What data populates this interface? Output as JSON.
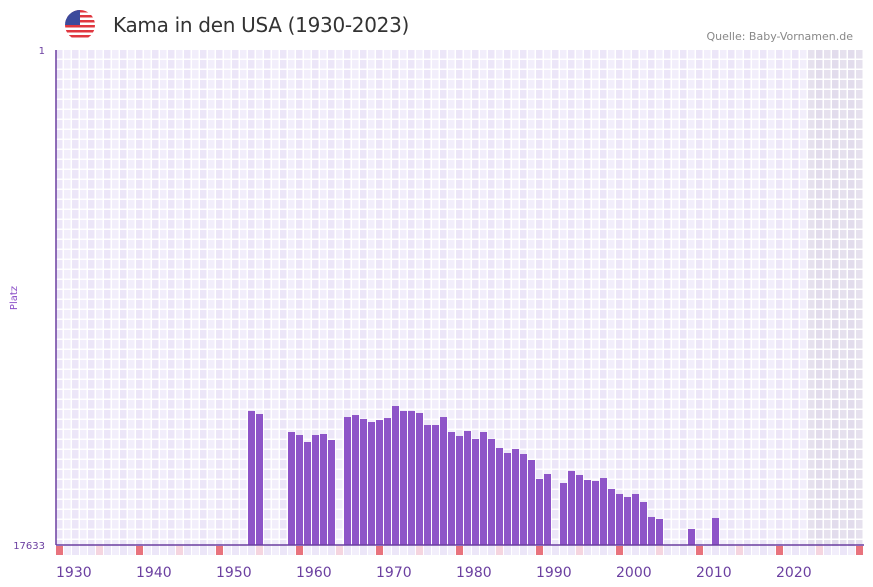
{
  "header": {
    "title": "Kama in den USA (1930-2023)",
    "source": "Quelle: Baby-Vornamen.de",
    "flag_icon": "us-flag-icon"
  },
  "chart_data": {
    "type": "bar",
    "title": "Kama in den USA (1930-2023)",
    "xlabel": "",
    "ylabel": "Platz",
    "y_axis_inverted": true,
    "ylim": [
      1,
      17633
    ],
    "y_ticks": [
      "1",
      "17633"
    ],
    "xlim": [
      1930,
      2030
    ],
    "x_ticks": [
      "1930",
      "1940",
      "1950",
      "1960",
      "1970",
      "1980",
      "1990",
      "2000",
      "2010",
      "2020"
    ],
    "shaded_future_from": 2024,
    "colors": {
      "bar": "#8e55c8",
      "axis": "#6b3fa0",
      "marker_decade": "#e8737d",
      "marker_half": "#f5d5df"
    },
    "x": [
      1954,
      1955,
      1959,
      1960,
      1961,
      1962,
      1963,
      1964,
      1966,
      1967,
      1968,
      1969,
      1970,
      1971,
      1972,
      1973,
      1974,
      1975,
      1976,
      1977,
      1978,
      1979,
      1980,
      1981,
      1982,
      1983,
      1984,
      1985,
      1986,
      1987,
      1988,
      1989,
      1990,
      1991,
      1993,
      1994,
      1995,
      1996,
      1997,
      1998,
      1999,
      2000,
      2001,
      2002,
      2003,
      2004,
      2005,
      2009,
      2012
    ],
    "values": [
      12860,
      12967,
      13608,
      13715,
      13964,
      13715,
      13679,
      13893,
      13074,
      13003,
      13145,
      13252,
      13181,
      13110,
      12682,
      12860,
      12860,
      12931,
      13359,
      13359,
      13074,
      13608,
      13750,
      13572,
      13857,
      13608,
      13857,
      14178,
      14356,
      14214,
      14392,
      14605,
      15282,
      15104,
      15425,
      14997,
      15139,
      15318,
      15353,
      15247,
      15638,
      15816,
      15923,
      15816,
      16101,
      16635,
      16707,
      17063,
      16671
    ]
  }
}
